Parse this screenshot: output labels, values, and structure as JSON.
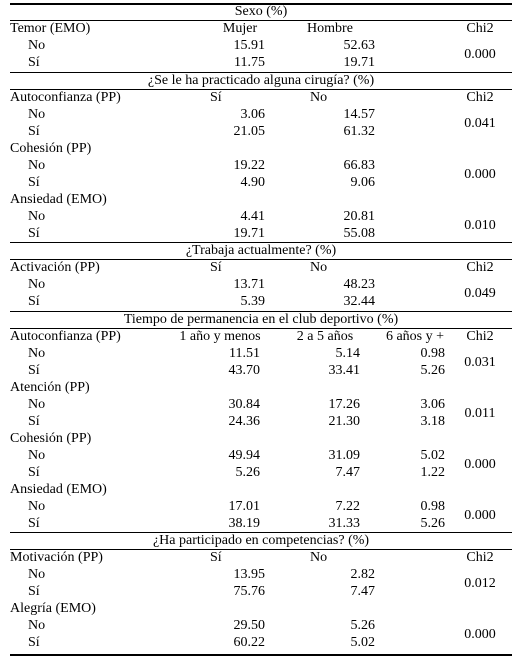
{
  "sections": [
    {
      "title": "Sexo (%)",
      "header": {
        "label": "Temor (EMO)",
        "cols": [
          "Mujer",
          "Hombre"
        ],
        "chi": "Chi2"
      },
      "groups": [
        {
          "label": "",
          "rows": [
            {
              "label": "No",
              "v": [
                "15.91",
                "52.63"
              ]
            },
            {
              "label": "Sí",
              "v": [
                "11.75",
                "19.71"
              ]
            }
          ],
          "chi": "0.000"
        }
      ]
    },
    {
      "title": "¿Se le ha practicado alguna cirugía? (%)",
      "header": {
        "label": "Autoconfianza (PP)",
        "cols": [
          "Sí",
          "No"
        ],
        "chi": "Chi2"
      },
      "groups": [
        {
          "label": "",
          "rows": [
            {
              "label": "No",
              "v": [
                "3.06",
                "14.57"
              ]
            },
            {
              "label": "Sí",
              "v": [
                "21.05",
                "61.32"
              ]
            }
          ],
          "chi": "0.041"
        },
        {
          "label": "Cohesión (PP)",
          "rows": [
            {
              "label": "No",
              "v": [
                "19.22",
                "66.83"
              ]
            },
            {
              "label": "Sí",
              "v": [
                "4.90",
                "9.06"
              ]
            }
          ],
          "chi": "0.000"
        },
        {
          "label": "Ansiedad (EMO)",
          "rows": [
            {
              "label": "No",
              "v": [
                "4.41",
                "20.81"
              ]
            },
            {
              "label": "Sí",
              "v": [
                "19.71",
                "55.08"
              ]
            }
          ],
          "chi": "0.010"
        }
      ]
    },
    {
      "title": "¿Trabaja actualmente? (%)",
      "header": {
        "label": "Activación (PP)",
        "cols": [
          "Sí",
          "No"
        ],
        "chi": "Chi2"
      },
      "groups": [
        {
          "label": "",
          "rows": [
            {
              "label": "No",
              "v": [
                "13.71",
                "48.23"
              ]
            },
            {
              "label": "Sí",
              "v": [
                "5.39",
                "32.44"
              ]
            }
          ],
          "chi": "0.049"
        }
      ]
    },
    {
      "title": "Tiempo de permanencia en el club deportivo (%)",
      "header": {
        "label": "Autoconfianza (PP)",
        "cols": [
          "1 año y menos",
          "2 a 5 años",
          "6 años y +"
        ],
        "chi": "Chi2"
      },
      "groups": [
        {
          "label": "",
          "rows": [
            {
              "label": "No",
              "v": [
                "11.51",
                "5.14",
                "0.98"
              ]
            },
            {
              "label": "Sí",
              "v": [
                "43.70",
                "33.41",
                "5.26"
              ]
            }
          ],
          "chi": "0.031"
        },
        {
          "label": "Atención (PP)",
          "rows": [
            {
              "label": "No",
              "v": [
                "30.84",
                "17.26",
                "3.06"
              ]
            },
            {
              "label": "Sí",
              "v": [
                "24.36",
                "21.30",
                "3.18"
              ]
            }
          ],
          "chi": "0.011"
        },
        {
          "label": "Cohesión (PP)",
          "rows": [
            {
              "label": "No",
              "v": [
                "49.94",
                "31.09",
                "5.02"
              ]
            },
            {
              "label": "Sí",
              "v": [
                "5.26",
                "7.47",
                "1.22"
              ]
            }
          ],
          "chi": "0.000"
        },
        {
          "label": "Ansiedad (EMO)",
          "rows": [
            {
              "label": "No",
              "v": [
                "17.01",
                "7.22",
                "0.98"
              ]
            },
            {
              "label": "Sí",
              "v": [
                "38.19",
                "31.33",
                "5.26"
              ]
            }
          ],
          "chi": "0.000"
        }
      ]
    },
    {
      "title": "¿Ha participado en competencias? (%)",
      "header": {
        "label": "Motivación (PP)",
        "cols": [
          "Sí",
          "No"
        ],
        "chi": "Chi2"
      },
      "groups": [
        {
          "label": "",
          "rows": [
            {
              "label": "No",
              "v": [
                "13.95",
                "2.82"
              ]
            },
            {
              "label": "Sí",
              "v": [
                "75.76",
                "7.47"
              ]
            }
          ],
          "chi": "0.012"
        },
        {
          "label": "Alegría (EMO)",
          "rows": [
            {
              "label": "No",
              "v": [
                "29.50",
                "5.26"
              ]
            },
            {
              "label": "Sí",
              "v": [
                "60.22",
                "5.02"
              ]
            }
          ],
          "chi": "0.000"
        }
      ]
    }
  ]
}
